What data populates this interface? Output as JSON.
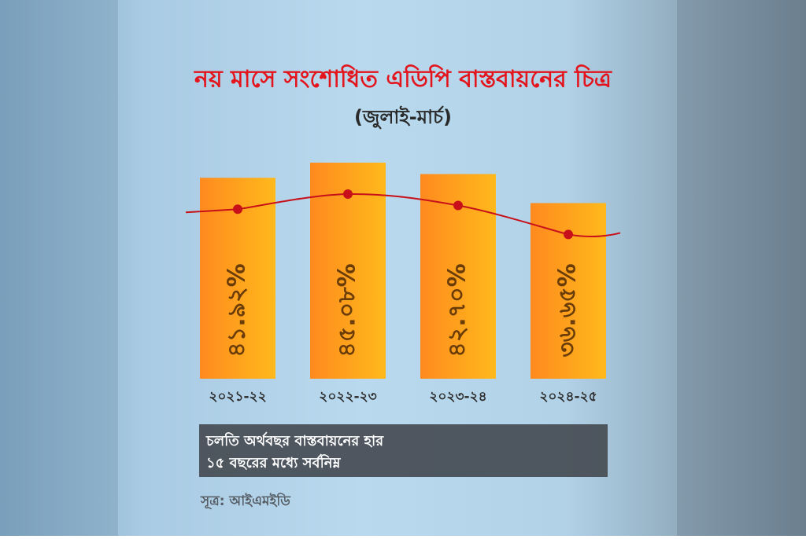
{
  "chart_data": {
    "type": "bar",
    "title": "নয় মাসে সংশোধিত এডিপি বাস্তবায়নের চিত্র",
    "subtitle": "(জুলাই-মার্চ)",
    "categories": [
      "২০২১-২২",
      "২০২২-২৩",
      "২০২৩-২৪",
      "২০২৪-২৫"
    ],
    "values": [
      41.92,
      45.08,
      42.7,
      36.65
    ],
    "value_labels": [
      "৪১.৯২%",
      "৪৫.০৮%",
      "৪২.৭০%",
      "৩৬.৬৫%"
    ],
    "color": "#ff9e1c",
    "line_color": "#c8101a",
    "ylim": [
      0,
      50
    ],
    "annotations": [
      "চলতি অর্থবছর বাস্তবায়নের হার",
      "১৫ বছরের মধ্যে সর্বনিম্ন",
      "সূত্র: আইএমইডি"
    ]
  }
}
